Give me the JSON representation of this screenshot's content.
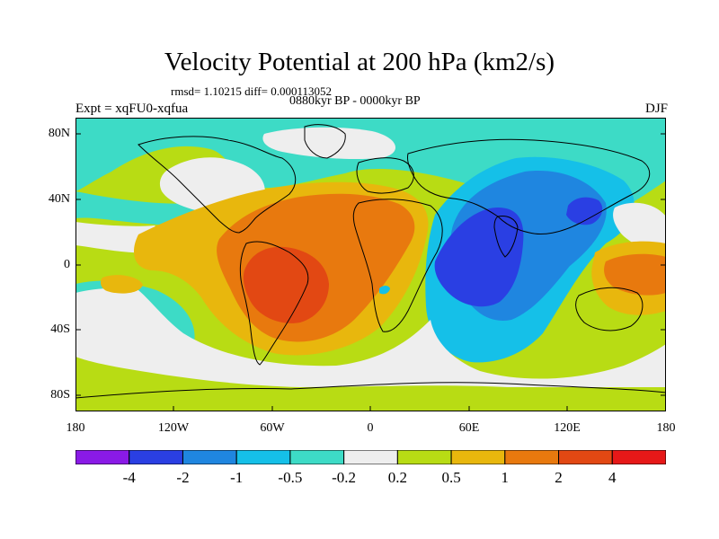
{
  "title": "Velocity Potential at 200 hPa (km2/s)",
  "stats": "rmsd= 1.10215 diff= 0.000113052",
  "period": "0880kyr BP - 0000kyr BP",
  "experiment": "Expt = xqFU0-xqfua",
  "season": "DJF",
  "lat_labels": [
    "80N",
    "40N",
    "0",
    "40S",
    "80S"
  ],
  "lon_labels": [
    "180",
    "120W",
    "60W",
    "0",
    "60E",
    "120E",
    "180"
  ],
  "colorbar": {
    "levels": [
      "-4",
      "-2",
      "-1",
      "-0.5",
      "-0.2",
      "0.2",
      "0.5",
      "1",
      "2",
      "4"
    ],
    "colors": [
      "#8a1ae6",
      "#2a3fe3",
      "#1f86e0",
      "#15c0e8",
      "#3ddbc6",
      "#eeeeee",
      "#b8dc14",
      "#e8b70d",
      "#e8790e",
      "#e24813",
      "#e61818"
    ]
  }
}
